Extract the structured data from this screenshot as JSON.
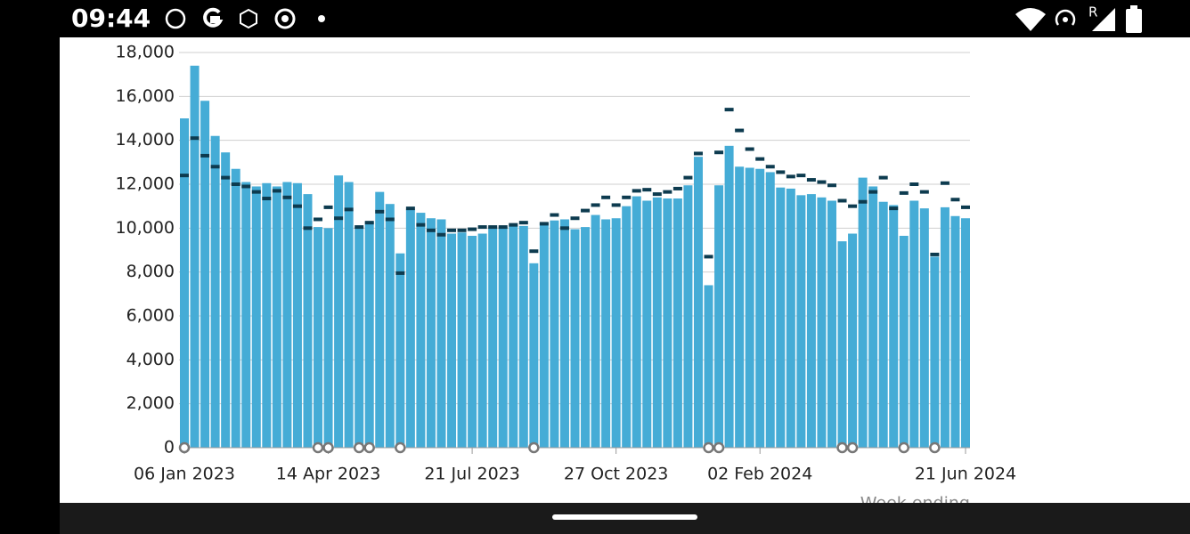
{
  "status_bar": {
    "time": "09:44",
    "roaming": "R"
  },
  "chart_data": {
    "type": "bar",
    "x_label": "Week ending",
    "categories": [
      "06 Jan 2023",
      null,
      null,
      null,
      null,
      null,
      null,
      null,
      null,
      null,
      null,
      null,
      null,
      null,
      "14 Apr 2023",
      null,
      null,
      null,
      null,
      null,
      null,
      null,
      null,
      null,
      null,
      null,
      null,
      null,
      "21 Jul 2023",
      null,
      null,
      null,
      null,
      null,
      null,
      null,
      null,
      null,
      null,
      null,
      null,
      null,
      "27 Oct 2023",
      null,
      null,
      null,
      null,
      null,
      null,
      null,
      null,
      null,
      null,
      null,
      null,
      null,
      "02 Feb 2024",
      null,
      null,
      null,
      null,
      null,
      null,
      null,
      null,
      null,
      null,
      null,
      null,
      null,
      null,
      null,
      null,
      null,
      null,
      null,
      "21 Jun 2024"
    ],
    "series": [
      {
        "style": "bar",
        "color": "#45acd6",
        "values": [
          15000,
          17400,
          15800,
          14200,
          13450,
          12700,
          12100,
          11900,
          12050,
          11900,
          12100,
          12050,
          11550,
          10050,
          10000,
          12400,
          12100,
          10050,
          10300,
          11650,
          11100,
          8850,
          10850,
          10700,
          10450,
          10400,
          9750,
          9800,
          9650,
          9750,
          10050,
          10050,
          10150,
          10100,
          8400,
          10250,
          10350,
          10400,
          9950,
          10050,
          10600,
          10400,
          10450,
          11000,
          11450,
          11250,
          11400,
          11350,
          11350,
          11950,
          13250,
          7400,
          11950,
          13750,
          12800,
          12750,
          12700,
          12550,
          11850,
          11800,
          11500,
          11550,
          11400,
          11250,
          9400,
          9750,
          12300,
          11900,
          11200,
          11050,
          9650,
          11250,
          10900,
          8700,
          10950,
          10550,
          10450
        ]
      },
      {
        "style": "dash",
        "color": "#0d3b4f",
        "values": [
          12400,
          14100,
          13300,
          12800,
          12300,
          12000,
          11900,
          11650,
          11350,
          11700,
          11400,
          11000,
          10000,
          10400,
          10950,
          10450,
          10850,
          10050,
          10250,
          10750,
          10400,
          7950,
          10900,
          10150,
          9900,
          9700,
          9900,
          9900,
          9950,
          10050,
          10050,
          10050,
          10150,
          10250,
          8950,
          10200,
          10600,
          10000,
          10450,
          10800,
          11050,
          11400,
          11050,
          11400,
          11700,
          11750,
          11550,
          11650,
          11800,
          12300,
          13400,
          8700,
          13450,
          15400,
          14450,
          13600,
          13150,
          12800,
          12550,
          12350,
          12400,
          12200,
          12100,
          11950,
          11250,
          11000,
          11200,
          11650,
          12300,
          10900,
          11600,
          12000,
          11650,
          8800,
          12050,
          11300,
          10950
        ]
      }
    ],
    "flags": [
      0,
      13,
      14,
      17,
      18,
      21,
      34,
      51,
      52,
      64,
      65,
      70,
      73
    ],
    "ylim": [
      0,
      18000
    ],
    "yticks": [
      0,
      {
        "value": 2000,
        "label": "2,000"
      },
      {
        "value": 4000,
        "label": "4,000"
      },
      {
        "value": 6000,
        "label": "6,000"
      },
      {
        "value": 8000,
        "label": "8,000"
      },
      {
        "value": 10000,
        "label": "10,000"
      },
      {
        "value": 12000,
        "label": "12,000"
      },
      {
        "value": 14000,
        "label": "14,000"
      },
      {
        "value": 16000,
        "label": "16,000"
      },
      {
        "value": 18000,
        "label": "18,000"
      }
    ],
    "grid": true
  }
}
